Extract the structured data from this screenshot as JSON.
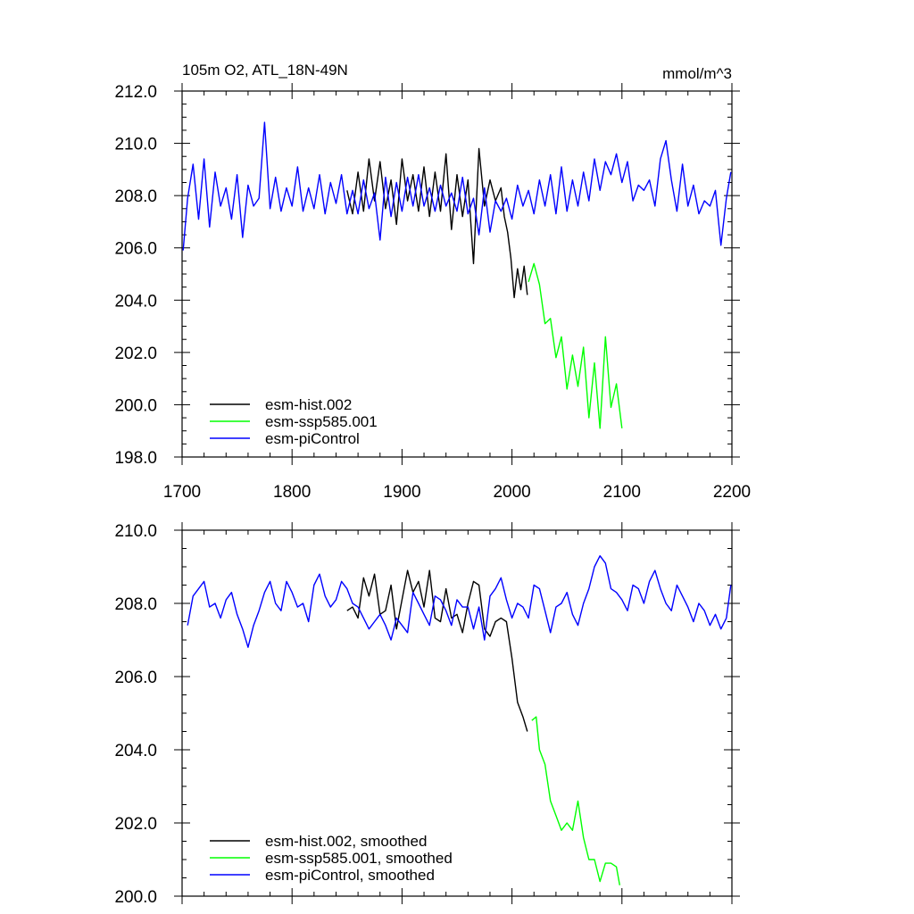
{
  "chart_data": [
    {
      "type": "line",
      "title": "105m O2, ATL_18N-49N",
      "units": "mmol/m^3",
      "xlim": [
        1700,
        2200
      ],
      "ylim": [
        198,
        212
      ],
      "xticks": [
        "1700",
        "1800",
        "1900",
        "2000",
        "2100",
        "2200"
      ],
      "yticks": [
        "198.0",
        "200.0",
        "202.0",
        "204.0",
        "206.0",
        "208.0",
        "210.0",
        "212.0"
      ],
      "legend_position": "bottom-left",
      "series": [
        {
          "name": "esm-hist.002",
          "color": "#000000",
          "x": [
            1850,
            1855,
            1860,
            1865,
            1870,
            1875,
            1880,
            1885,
            1890,
            1895,
            1900,
            1905,
            1910,
            1915,
            1920,
            1925,
            1930,
            1935,
            1940,
            1945,
            1950,
            1955,
            1960,
            1965,
            1970,
            1975,
            1980,
            1985,
            1990,
            1993,
            1996,
            1999,
            2002,
            2005,
            2008,
            2011,
            2014
          ],
          "values": [
            208.2,
            207.3,
            208.9,
            207.4,
            209.4,
            207.8,
            209.3,
            207.5,
            208.6,
            206.9,
            209.4,
            207.8,
            208.8,
            207.4,
            209.1,
            207.2,
            208.9,
            207.4,
            209.6,
            206.7,
            208.8,
            207.2,
            208.6,
            205.4,
            209.8,
            207.6,
            208.6,
            207.8,
            208.3,
            207.2,
            206.6,
            205.6,
            204.1,
            205.2,
            204.4,
            205.3,
            204.2
          ]
        },
        {
          "name": "esm-ssp585.001",
          "color": "#00ff00",
          "x": [
            2015,
            2020,
            2025,
            2030,
            2035,
            2040,
            2045,
            2050,
            2055,
            2060,
            2065,
            2070,
            2075,
            2080,
            2085,
            2090,
            2095,
            2100
          ],
          "values": [
            204.7,
            205.4,
            204.6,
            203.1,
            203.3,
            201.8,
            202.6,
            200.6,
            201.9,
            200.7,
            202.2,
            199.5,
            201.6,
            199.1,
            202.6,
            199.9,
            200.8,
            199.1
          ]
        },
        {
          "name": "esm-piControl",
          "color": "#0000ff",
          "x": [
            1701,
            1705,
            1710,
            1715,
            1720,
            1725,
            1730,
            1735,
            1740,
            1745,
            1750,
            1755,
            1760,
            1765,
            1770,
            1775,
            1780,
            1785,
            1790,
            1795,
            1800,
            1805,
            1810,
            1815,
            1820,
            1825,
            1830,
            1835,
            1840,
            1845,
            1850,
            1855,
            1860,
            1865,
            1870,
            1875,
            1880,
            1885,
            1890,
            1895,
            1900,
            1905,
            1910,
            1915,
            1920,
            1925,
            1930,
            1935,
            1940,
            1945,
            1950,
            1955,
            1960,
            1965,
            1970,
            1975,
            1980,
            1985,
            1990,
            1995,
            2000,
            2005,
            2010,
            2015,
            2020,
            2025,
            2030,
            2035,
            2040,
            2045,
            2050,
            2055,
            2060,
            2065,
            2070,
            2075,
            2080,
            2085,
            2090,
            2095,
            2100,
            2105,
            2110,
            2115,
            2120,
            2125,
            2130,
            2135,
            2140,
            2145,
            2150,
            2155,
            2160,
            2165,
            2170,
            2175,
            2180,
            2185,
            2190,
            2195,
            2199
          ],
          "values": [
            205.9,
            207.9,
            209.2,
            207.1,
            209.4,
            206.8,
            208.9,
            207.6,
            208.3,
            207.1,
            208.8,
            206.4,
            208.4,
            207.6,
            207.9,
            210.8,
            207.5,
            208.7,
            207.4,
            208.3,
            207.6,
            209.1,
            207.4,
            208.3,
            207.5,
            208.8,
            207.3,
            208.5,
            207.7,
            208.8,
            207.3,
            208.2,
            207.3,
            208.6,
            207.5,
            208.1,
            206.3,
            208.7,
            207.2,
            208.5,
            207.4,
            208.7,
            207.6,
            208.8,
            207.6,
            208.3,
            207.4,
            208.4,
            207.6,
            208.1,
            207.4,
            208.7,
            207.3,
            207.9,
            206.5,
            208.3,
            206.6,
            207.8,
            207.4,
            207.9,
            207.1,
            208.4,
            207.6,
            208.2,
            207.3,
            208.6,
            207.6,
            208.8,
            207.3,
            209.1,
            207.4,
            208.6,
            207.6,
            208.9,
            207.8,
            209.4,
            208.2,
            209.3,
            208.8,
            209.6,
            208.5,
            209.3,
            207.8,
            208.4,
            208.2,
            208.6,
            207.6,
            209.4,
            210.1,
            208.6,
            207.4,
            209.2,
            207.6,
            208.4,
            207.3,
            207.8,
            207.6,
            208.2,
            206.1,
            207.9,
            208.9
          ]
        }
      ]
    },
    {
      "type": "line",
      "xlim": [
        1700,
        2200
      ],
      "ylim": [
        200,
        210
      ],
      "yticks": [
        "200.0",
        "202.0",
        "204.0",
        "206.0",
        "208.0",
        "210.0"
      ],
      "legend_position": "bottom-left",
      "series": [
        {
          "name": "esm-hist.002, smoothed",
          "color": "#000000",
          "x": [
            1850,
            1855,
            1860,
            1865,
            1870,
            1875,
            1880,
            1885,
            1890,
            1895,
            1900,
            1905,
            1910,
            1915,
            1920,
            1925,
            1930,
            1935,
            1940,
            1945,
            1950,
            1955,
            1960,
            1965,
            1970,
            1975,
            1980,
            1985,
            1990,
            1995,
            2000,
            2005,
            2010,
            2014
          ],
          "values": [
            207.8,
            207.9,
            207.6,
            208.7,
            208.2,
            208.8,
            207.7,
            207.8,
            208.5,
            207.3,
            208.1,
            208.9,
            208.3,
            208.6,
            207.9,
            208.9,
            207.6,
            207.5,
            208.4,
            207.6,
            207.7,
            207.2,
            208.0,
            208.6,
            208.5,
            207.3,
            207.1,
            207.5,
            207.6,
            207.5,
            206.5,
            205.3,
            204.9,
            204.5
          ]
        },
        {
          "name": "esm-ssp585.001, smoothed",
          "color": "#00ff00",
          "x": [
            2018,
            2022,
            2025,
            2030,
            2035,
            2040,
            2045,
            2050,
            2055,
            2060,
            2065,
            2070,
            2075,
            2080,
            2085,
            2090,
            2095,
            2098
          ],
          "values": [
            204.8,
            204.9,
            204.0,
            203.6,
            202.6,
            202.2,
            201.8,
            202.0,
            201.8,
            202.6,
            201.6,
            201.0,
            201.0,
            200.4,
            200.9,
            200.9,
            200.8,
            200.3
          ]
        },
        {
          "name": "esm-piControl, smoothed",
          "color": "#0000ff",
          "x": [
            1705,
            1710,
            1715,
            1720,
            1725,
            1730,
            1735,
            1740,
            1745,
            1750,
            1755,
            1760,
            1765,
            1770,
            1775,
            1780,
            1785,
            1790,
            1795,
            1800,
            1805,
            1810,
            1815,
            1820,
            1825,
            1830,
            1835,
            1840,
            1845,
            1850,
            1855,
            1860,
            1865,
            1870,
            1875,
            1880,
            1885,
            1890,
            1895,
            1900,
            1905,
            1910,
            1915,
            1920,
            1925,
            1930,
            1935,
            1940,
            1945,
            1950,
            1955,
            1960,
            1965,
            1970,
            1975,
            1980,
            1985,
            1990,
            1995,
            2000,
            2005,
            2010,
            2015,
            2020,
            2025,
            2030,
            2035,
            2040,
            2045,
            2050,
            2055,
            2060,
            2065,
            2070,
            2075,
            2080,
            2085,
            2090,
            2095,
            2100,
            2105,
            2110,
            2115,
            2120,
            2125,
            2130,
            2135,
            2140,
            2145,
            2150,
            2155,
            2160,
            2165,
            2170,
            2175,
            2180,
            2185,
            2190,
            2195,
            2199
          ],
          "values": [
            207.4,
            208.2,
            208.4,
            208.6,
            207.9,
            208.0,
            207.6,
            208.1,
            208.3,
            207.7,
            207.3,
            206.8,
            207.4,
            207.8,
            208.3,
            208.6,
            208.0,
            207.8,
            208.6,
            208.3,
            207.9,
            208.0,
            207.5,
            208.5,
            208.8,
            208.2,
            207.9,
            208.1,
            208.6,
            208.4,
            208.0,
            207.9,
            207.6,
            207.3,
            207.5,
            207.7,
            207.4,
            207.0,
            207.6,
            207.4,
            207.2,
            208.3,
            208.0,
            207.7,
            207.4,
            208.2,
            208.1,
            207.8,
            207.4,
            208.1,
            207.9,
            207.9,
            207.3,
            207.9,
            207.0,
            208.2,
            208.4,
            208.7,
            208.1,
            207.6,
            208.0,
            207.9,
            207.6,
            208.5,
            208.4,
            207.8,
            207.2,
            207.9,
            208.0,
            208.3,
            207.7,
            207.4,
            208.0,
            208.4,
            209.0,
            209.3,
            209.1,
            208.4,
            208.3,
            208.1,
            207.8,
            208.5,
            208.4,
            208.0,
            208.6,
            208.9,
            208.4,
            208.0,
            207.8,
            208.5,
            208.2,
            207.9,
            207.5,
            208.0,
            207.8,
            207.4,
            207.7,
            207.3,
            207.6,
            208.5
          ]
        }
      ]
    }
  ]
}
